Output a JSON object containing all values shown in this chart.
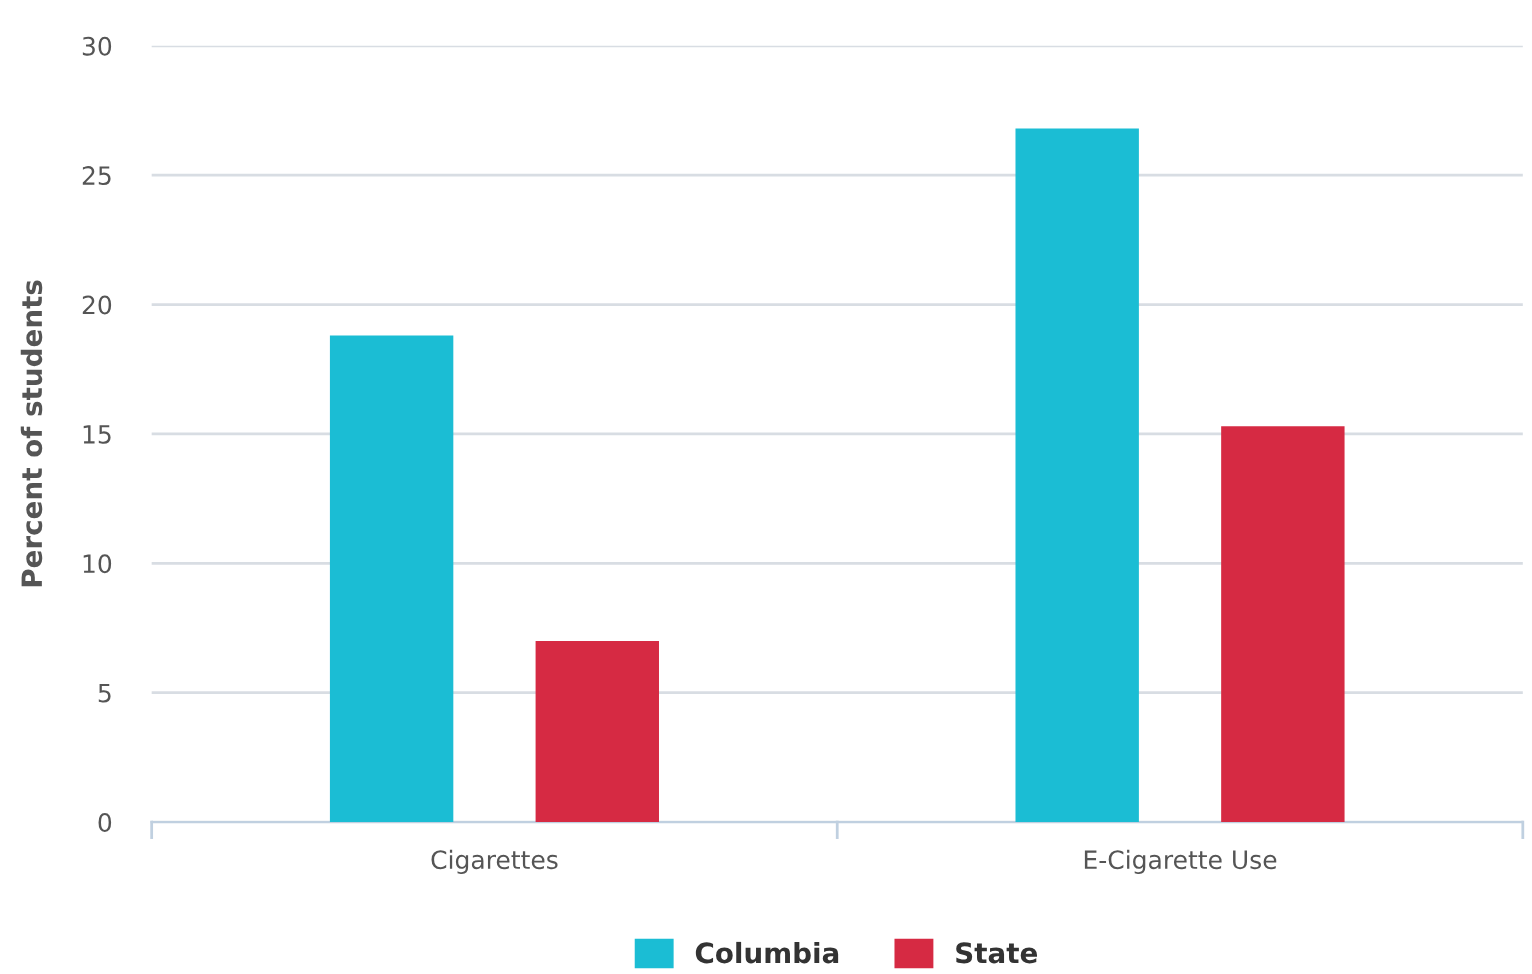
{
  "chart_data": {
    "type": "bar",
    "ylabel": "Percent of students",
    "categories": [
      "Cigarettes",
      "E-Cigarette Use"
    ],
    "series": [
      {
        "name": "Columbia",
        "color": "#1bbdd4",
        "values": [
          18.8,
          26.8
        ]
      },
      {
        "name": "State",
        "color": "#d62a43",
        "values": [
          7.0,
          15.3
        ]
      }
    ],
    "ylim": [
      0,
      30
    ],
    "yticks": [
      0,
      5,
      10,
      15,
      20,
      25,
      30
    ],
    "grid": "y",
    "legend": "bottom"
  }
}
